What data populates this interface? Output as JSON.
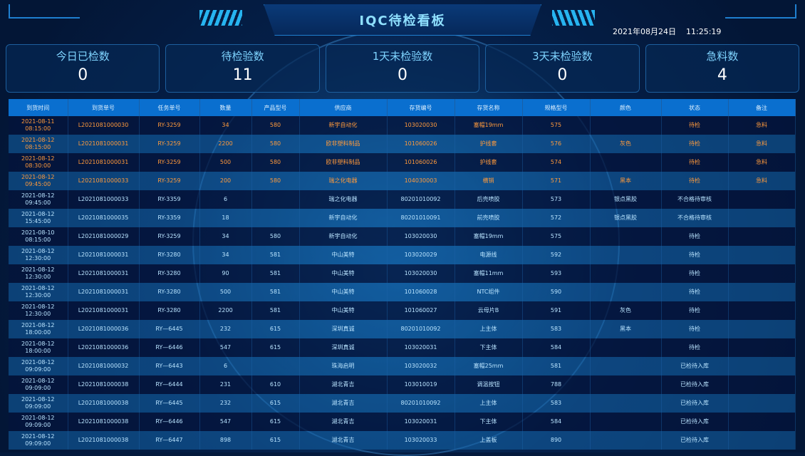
{
  "header": {
    "title": "IQC待检看板",
    "date": "2021年08月24日",
    "time": "11:25:19"
  },
  "stats": [
    {
      "label": "今日已检数",
      "value": "0"
    },
    {
      "label": "待检验数",
      "value": "11"
    },
    {
      "label": "1天未检验数",
      "value": "0"
    },
    {
      "label": "3天未检验数",
      "value": "0"
    },
    {
      "label": "急料数",
      "value": "4"
    }
  ],
  "table": {
    "columns": [
      "到货时间",
      "到货单号",
      "任务单号",
      "数量",
      "产品型号",
      "供应商",
      "存货编号",
      "存货名称",
      "规格型号",
      "颜色",
      "状态",
      "备注"
    ],
    "rows": [
      {
        "urgent": true,
        "cells": [
          "2021-08-11 08:15:00",
          "L2021081000030",
          "RY-3259",
          "34",
          "580",
          "新宇自动化",
          "103020030",
          "塞帽19mm",
          "575",
          "",
          "待检",
          "急料"
        ]
      },
      {
        "urgent": true,
        "cells": [
          "2021-08-12 08:15:00",
          "L2021081000031",
          "RY-3259",
          "2200",
          "580",
          "欧非塑料制品",
          "101060026",
          "护线套",
          "576",
          "灰色",
          "待检",
          "急料"
        ]
      },
      {
        "urgent": true,
        "cells": [
          "2021-08-12 08:30:00",
          "L2021081000031",
          "RY-3259",
          "500",
          "580",
          "欧非塑料制品",
          "101060026",
          "护线套",
          "574",
          "",
          "待检",
          "急料"
        ]
      },
      {
        "urgent": true,
        "cells": [
          "2021-08-12 09:45:00",
          "L2021081000033",
          "RY-3259",
          "200",
          "580",
          "瑞之化电器",
          "104030003",
          "横销",
          "571",
          "黑本",
          "待检",
          "急料"
        ]
      },
      {
        "urgent": false,
        "cells": [
          "2021-08-12 09:45:00",
          "L2021081000033",
          "RY-3359",
          "6",
          "",
          "瑞之化电器",
          "80201010092",
          "后壳喷胶",
          "573",
          "银点黑胶",
          "不合格待审核",
          ""
        ]
      },
      {
        "urgent": false,
        "cells": [
          "2021-08-12 15:45:00",
          "L2021081000035",
          "RY-3359",
          "18",
          "",
          "新宇自动化",
          "80201010091",
          "前壳喷胶",
          "572",
          "银点黑胶",
          "不合格待审核",
          ""
        ]
      },
      {
        "urgent": false,
        "cells": [
          "2021-08-10 08:15:00",
          "L2021081000029",
          "RY-3259",
          "34",
          "580",
          "新宇自动化",
          "103020030",
          "塞帽19mm",
          "575",
          "",
          "待检",
          ""
        ]
      },
      {
        "urgent": false,
        "cells": [
          "2021-08-12 12:30:00",
          "L2021081000031",
          "RY-3280",
          "34",
          "581",
          "中山美特",
          "103020029",
          "电源线",
          "592",
          "",
          "待检",
          ""
        ]
      },
      {
        "urgent": false,
        "cells": [
          "2021-08-12 12:30:00",
          "L2021081000031",
          "RY-3280",
          "90",
          "581",
          "中山美特",
          "103020030",
          "塞帽11mm",
          "593",
          "",
          "待检",
          ""
        ]
      },
      {
        "urgent": false,
        "cells": [
          "2021-08-12 12:30:00",
          "L2021081000031",
          "RY-3280",
          "500",
          "581",
          "中山美特",
          "101060028",
          "NTC组件",
          "590",
          "",
          "待检",
          ""
        ]
      },
      {
        "urgent": false,
        "cells": [
          "2021-08-12 12:30:00",
          "L2021081000031",
          "RY-3280",
          "2200",
          "581",
          "中山美特",
          "101060027",
          "云母片B",
          "591",
          "灰色",
          "待检",
          ""
        ]
      },
      {
        "urgent": false,
        "cells": [
          "2021-08-12 18:00:00",
          "L2021081000036",
          "RY—6445",
          "232",
          "615",
          "深圳真诚",
          "80201010092",
          "上主体",
          "583",
          "黑本",
          "待检",
          ""
        ]
      },
      {
        "urgent": false,
        "cells": [
          "2021-08-12 18:00:00",
          "L2021081000036",
          "RY—6446",
          "547",
          "615",
          "深圳真诚",
          "103020031",
          "下主体",
          "584",
          "",
          "待检",
          ""
        ]
      },
      {
        "urgent": false,
        "cells": [
          "2021-08-12 09:09:00",
          "L2021081000032",
          "RY—6443",
          "6",
          "",
          "珠海启明",
          "103020032",
          "塞帽25mm",
          "581",
          "",
          "已检待入库",
          ""
        ]
      },
      {
        "urgent": false,
        "cells": [
          "2021-08-12 09:09:00",
          "L2021081000038",
          "RY—6444",
          "231",
          "610",
          "湖北青吉",
          "103010019",
          "调温按钮",
          "788",
          "",
          "已检待入库",
          ""
        ]
      },
      {
        "urgent": false,
        "cells": [
          "2021-08-12 09:09:00",
          "L2021081000038",
          "RY—6445",
          "232",
          "615",
          "湖北青吉",
          "80201010092",
          "上主体",
          "583",
          "",
          "已检待入库",
          ""
        ]
      },
      {
        "urgent": false,
        "cells": [
          "2021-08-12 09:09:00",
          "L2021081000038",
          "RY—6446",
          "547",
          "615",
          "湖北青吉",
          "103020031",
          "下主体",
          "584",
          "",
          "已检待入库",
          ""
        ]
      },
      {
        "urgent": false,
        "cells": [
          "2021-08-12 09:09:00",
          "L2021081000038",
          "RY—6447",
          "898",
          "615",
          "湖北青吉",
          "103020033",
          "上盖板",
          "890",
          "",
          "已检待入库",
          ""
        ]
      }
    ]
  }
}
